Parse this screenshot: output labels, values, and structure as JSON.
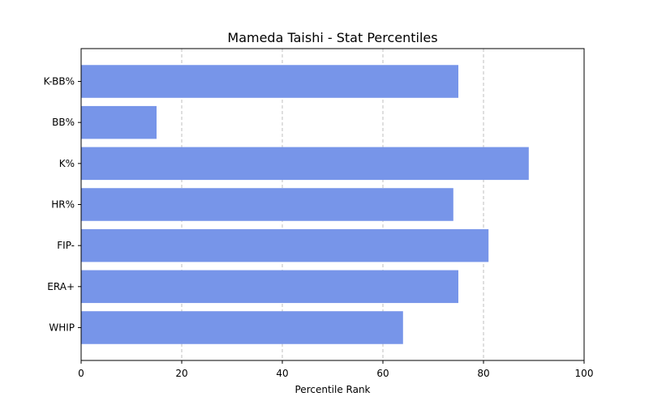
{
  "chart_data": {
    "type": "bar",
    "orientation": "horizontal",
    "title": "Mameda Taishi - Stat Percentiles",
    "xlabel": "Percentile Rank",
    "ylabel": "",
    "xlim": [
      0,
      100
    ],
    "xticks": [
      0,
      20,
      40,
      60,
      80,
      100
    ],
    "grid": "x-dashed",
    "bar_color": "#7795e9",
    "categories": [
      "K-BB%",
      "BB%",
      "K%",
      "HR%",
      "FIP-",
      "ERA+",
      "WHIP"
    ],
    "values": [
      75,
      15,
      89,
      74,
      81,
      75,
      64
    ]
  }
}
